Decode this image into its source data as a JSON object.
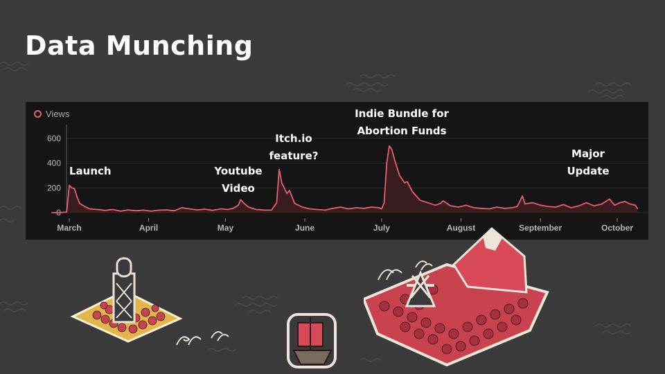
{
  "slide": {
    "title": "Data Munching"
  },
  "legend": {
    "label": "Views",
    "color": "#e8606d"
  },
  "annotations": {
    "launch": "Launch",
    "youtube_line1": "Youtube",
    "youtube_line2": "Video",
    "itch_line1": "Itch.io",
    "itch_line2": "feature?",
    "indie_line1": "Indie Bundle for",
    "indie_line2": "Abortion Funds",
    "major_line1": "Major",
    "major_line2": "Update"
  },
  "colors": {
    "background": "#3b3b3b",
    "panel": "#151515",
    "series": "#e8606d",
    "fill": "#3a1d20",
    "grid": "#2c2c2c"
  },
  "chart_data": {
    "type": "area",
    "x_start": "2019-03-01",
    "x_end": "2019-10-01",
    "ylim": [
      0,
      700
    ],
    "yticks": [
      0,
      200,
      400,
      600
    ],
    "month_labels": [
      "March",
      "April",
      "May",
      "June",
      "July",
      "August",
      "September",
      "October"
    ],
    "month_tick_dates": [
      "2019-03-01",
      "2019-04-01",
      "2019-05-01",
      "2019-06-01",
      "2019-07-01",
      "2019-08-01",
      "2019-09-01",
      "2019-10-01"
    ],
    "grid": true,
    "legend_position": "top-left",
    "series": [
      {
        "name": "Views",
        "points": [
          [
            "2019-02-22",
            0
          ],
          [
            "2019-02-25",
            0
          ],
          [
            "2019-02-28",
            5
          ],
          [
            "2019-03-01",
            220
          ],
          [
            "2019-03-02",
            200
          ],
          [
            "2019-03-03",
            195
          ],
          [
            "2019-03-04",
            130
          ],
          [
            "2019-03-05",
            75
          ],
          [
            "2019-03-07",
            50
          ],
          [
            "2019-03-09",
            30
          ],
          [
            "2019-03-12",
            25
          ],
          [
            "2019-03-15",
            18
          ],
          [
            "2019-03-18",
            25
          ],
          [
            "2019-03-21",
            12
          ],
          [
            "2019-03-24",
            22
          ],
          [
            "2019-03-27",
            15
          ],
          [
            "2019-03-30",
            20
          ],
          [
            "2019-04-02",
            12
          ],
          [
            "2019-04-05",
            20
          ],
          [
            "2019-04-08",
            22
          ],
          [
            "2019-04-11",
            15
          ],
          [
            "2019-04-14",
            40
          ],
          [
            "2019-04-17",
            30
          ],
          [
            "2019-04-20",
            22
          ],
          [
            "2019-04-23",
            28
          ],
          [
            "2019-04-26",
            18
          ],
          [
            "2019-04-29",
            30
          ],
          [
            "2019-05-02",
            25
          ],
          [
            "2019-05-04",
            35
          ],
          [
            "2019-05-06",
            60
          ],
          [
            "2019-05-07",
            105
          ],
          [
            "2019-05-08",
            80
          ],
          [
            "2019-05-10",
            45
          ],
          [
            "2019-05-13",
            25
          ],
          [
            "2019-05-16",
            20
          ],
          [
            "2019-05-19",
            20
          ],
          [
            "2019-05-21",
            80
          ],
          [
            "2019-05-22",
            350
          ],
          [
            "2019-05-23",
            240
          ],
          [
            "2019-05-25",
            155
          ],
          [
            "2019-05-26",
            180
          ],
          [
            "2019-05-28",
            75
          ],
          [
            "2019-05-31",
            45
          ],
          [
            "2019-06-03",
            30
          ],
          [
            "2019-06-06",
            25
          ],
          [
            "2019-06-09",
            20
          ],
          [
            "2019-06-12",
            35
          ],
          [
            "2019-06-15",
            45
          ],
          [
            "2019-06-18",
            30
          ],
          [
            "2019-06-21",
            40
          ],
          [
            "2019-06-24",
            35
          ],
          [
            "2019-06-27",
            45
          ],
          [
            "2019-06-30",
            40
          ],
          [
            "2019-07-01",
            30
          ],
          [
            "2019-07-02",
            80
          ],
          [
            "2019-07-03",
            400
          ],
          [
            "2019-07-04",
            540
          ],
          [
            "2019-07-05",
            510
          ],
          [
            "2019-07-06",
            430
          ],
          [
            "2019-07-08",
            300
          ],
          [
            "2019-07-10",
            240
          ],
          [
            "2019-07-11",
            250
          ],
          [
            "2019-07-13",
            170
          ],
          [
            "2019-07-16",
            100
          ],
          [
            "2019-07-19",
            80
          ],
          [
            "2019-07-22",
            60
          ],
          [
            "2019-07-24",
            75
          ],
          [
            "2019-07-25",
            95
          ],
          [
            "2019-07-28",
            55
          ],
          [
            "2019-07-31",
            45
          ],
          [
            "2019-08-03",
            60
          ],
          [
            "2019-08-06",
            40
          ],
          [
            "2019-08-09",
            35
          ],
          [
            "2019-08-12",
            30
          ],
          [
            "2019-08-15",
            45
          ],
          [
            "2019-08-18",
            35
          ],
          [
            "2019-08-21",
            40
          ],
          [
            "2019-08-23",
            50
          ],
          [
            "2019-08-25",
            135
          ],
          [
            "2019-08-26",
            70
          ],
          [
            "2019-08-29",
            80
          ],
          [
            "2019-09-01",
            60
          ],
          [
            "2019-09-04",
            50
          ],
          [
            "2019-09-07",
            45
          ],
          [
            "2019-09-10",
            65
          ],
          [
            "2019-09-13",
            40
          ],
          [
            "2019-09-16",
            55
          ],
          [
            "2019-09-19",
            80
          ],
          [
            "2019-09-22",
            55
          ],
          [
            "2019-09-25",
            70
          ],
          [
            "2019-09-28",
            110
          ],
          [
            "2019-09-30",
            60
          ],
          [
            "2019-10-02",
            80
          ],
          [
            "2019-10-04",
            90
          ],
          [
            "2019-10-06",
            70
          ],
          [
            "2019-10-08",
            60
          ],
          [
            "2019-10-09",
            30
          ]
        ]
      }
    ]
  }
}
